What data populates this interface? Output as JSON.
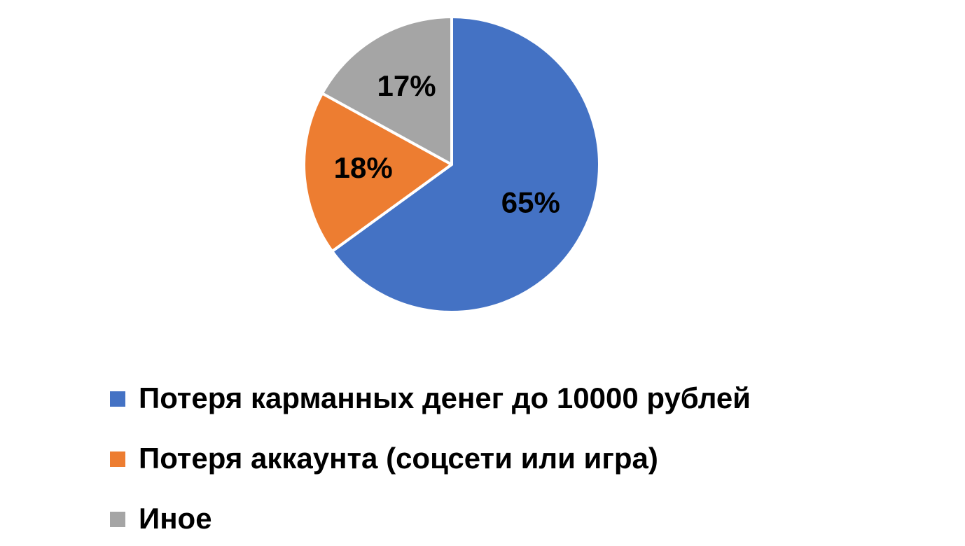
{
  "chart_data": {
    "type": "pie",
    "categories": [
      "Потеря карманных денег до 10000 рублей",
      "Потеря аккаунта (соцсети или игра)",
      "Иное"
    ],
    "values": [
      65,
      18,
      17
    ],
    "value_labels": [
      "65%",
      "18%",
      "17%"
    ],
    "colors": [
      "#4472c4",
      "#ed7d31",
      "#a5a5a5"
    ],
    "legend": "bottom"
  }
}
